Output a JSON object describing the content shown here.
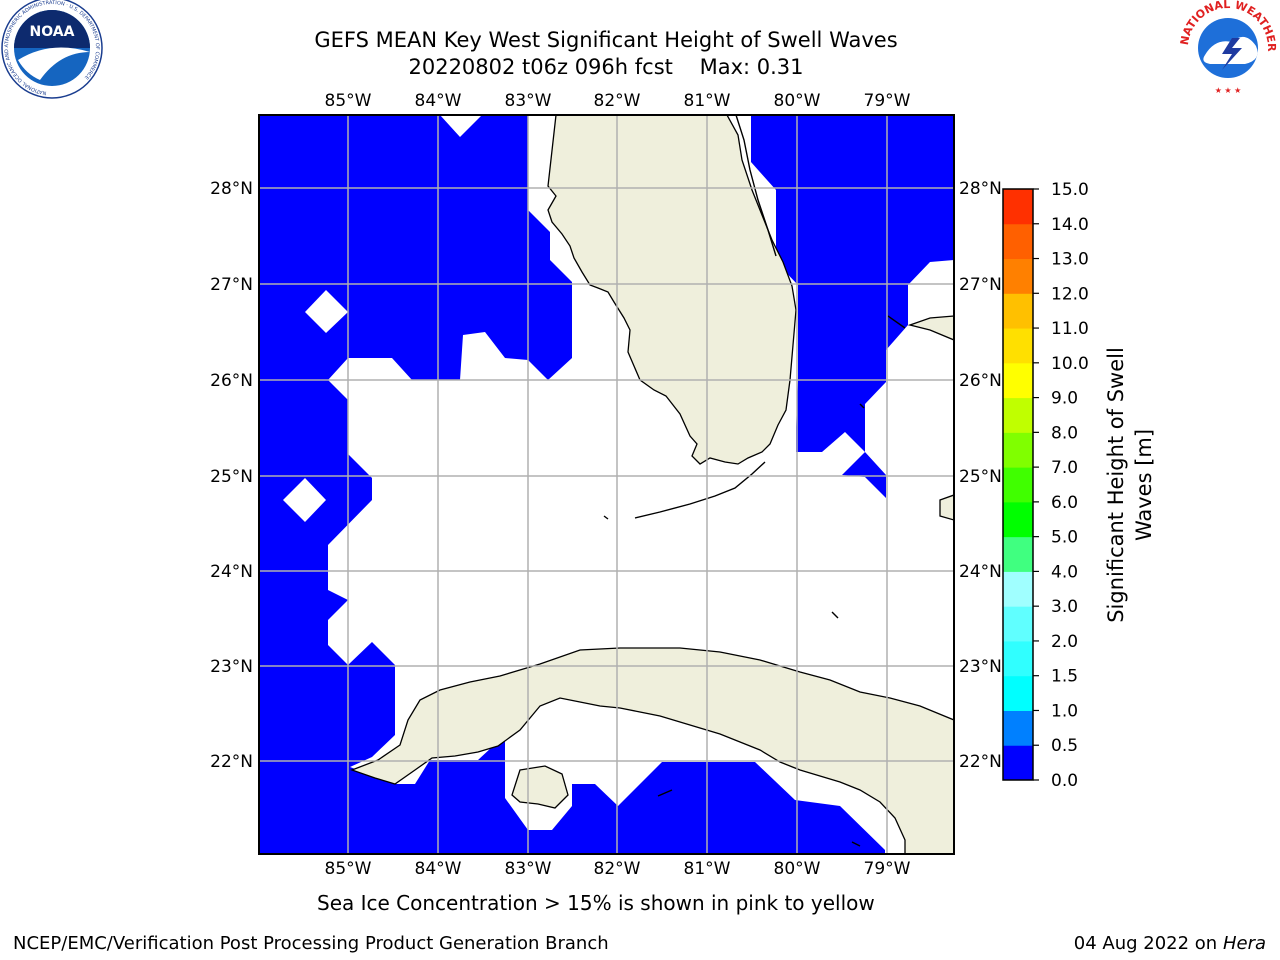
{
  "header": {
    "title_line1": "GEFS MEAN Key West Significant Height of Swell Waves",
    "title_line2": "20220802 t06z 096h fcst    Max: 0.31"
  },
  "logos": {
    "left": {
      "name": "NOAA",
      "ring_text": "NATIONAL OCEANIC AND ATMOSPHERIC ADMINISTRATION · U.S. DEPARTMENT OF COMMERCE"
    },
    "right": {
      "name": "NATIONAL WEATHER SERVICE"
    }
  },
  "map": {
    "lon_labels": [
      "85°W",
      "84°W",
      "83°W",
      "82°W",
      "81°W",
      "80°W",
      "79°W"
    ],
    "lat_labels": [
      "28°N",
      "27°N",
      "26°N",
      "25°N",
      "24°N",
      "23°N",
      "22°N"
    ],
    "colors": {
      "ocean_fill": "#0000ff",
      "land": "#efefdc",
      "grid": "#b0b0b0"
    }
  },
  "colorbar": {
    "label": "Significant Height of Swell Waves [m]",
    "label_line1": "Significant Height of Swell",
    "label_line2": "Waves [m]",
    "ticks": [
      "15.0",
      "14.0",
      "13.0",
      "12.0",
      "11.0",
      "10.0",
      "9.0",
      "8.0",
      "7.0",
      "6.0",
      "5.0",
      "4.0",
      "3.0",
      "2.0",
      "1.5",
      "1.0",
      "0.5",
      "0.0"
    ],
    "colors_bottom_to_top": [
      "#0000ff",
      "#0080ff",
      "#00ffff",
      "#30ffff",
      "#60ffff",
      "#a0ffff",
      "#40ff80",
      "#00ff00",
      "#40ff00",
      "#80ff00",
      "#c0ff00",
      "#ffff00",
      "#ffe000",
      "#ffc000",
      "#ff8000",
      "#ff6000",
      "#ff3000",
      "#ff0000"
    ]
  },
  "footer": {
    "ice_note": "Sea Ice Concentration > 15% is shown in pink to yellow",
    "credit": "NCEP/EMC/Verification Post Processing Product Generation Branch",
    "date": "04 Aug 2022 on",
    "host": "Hera"
  }
}
